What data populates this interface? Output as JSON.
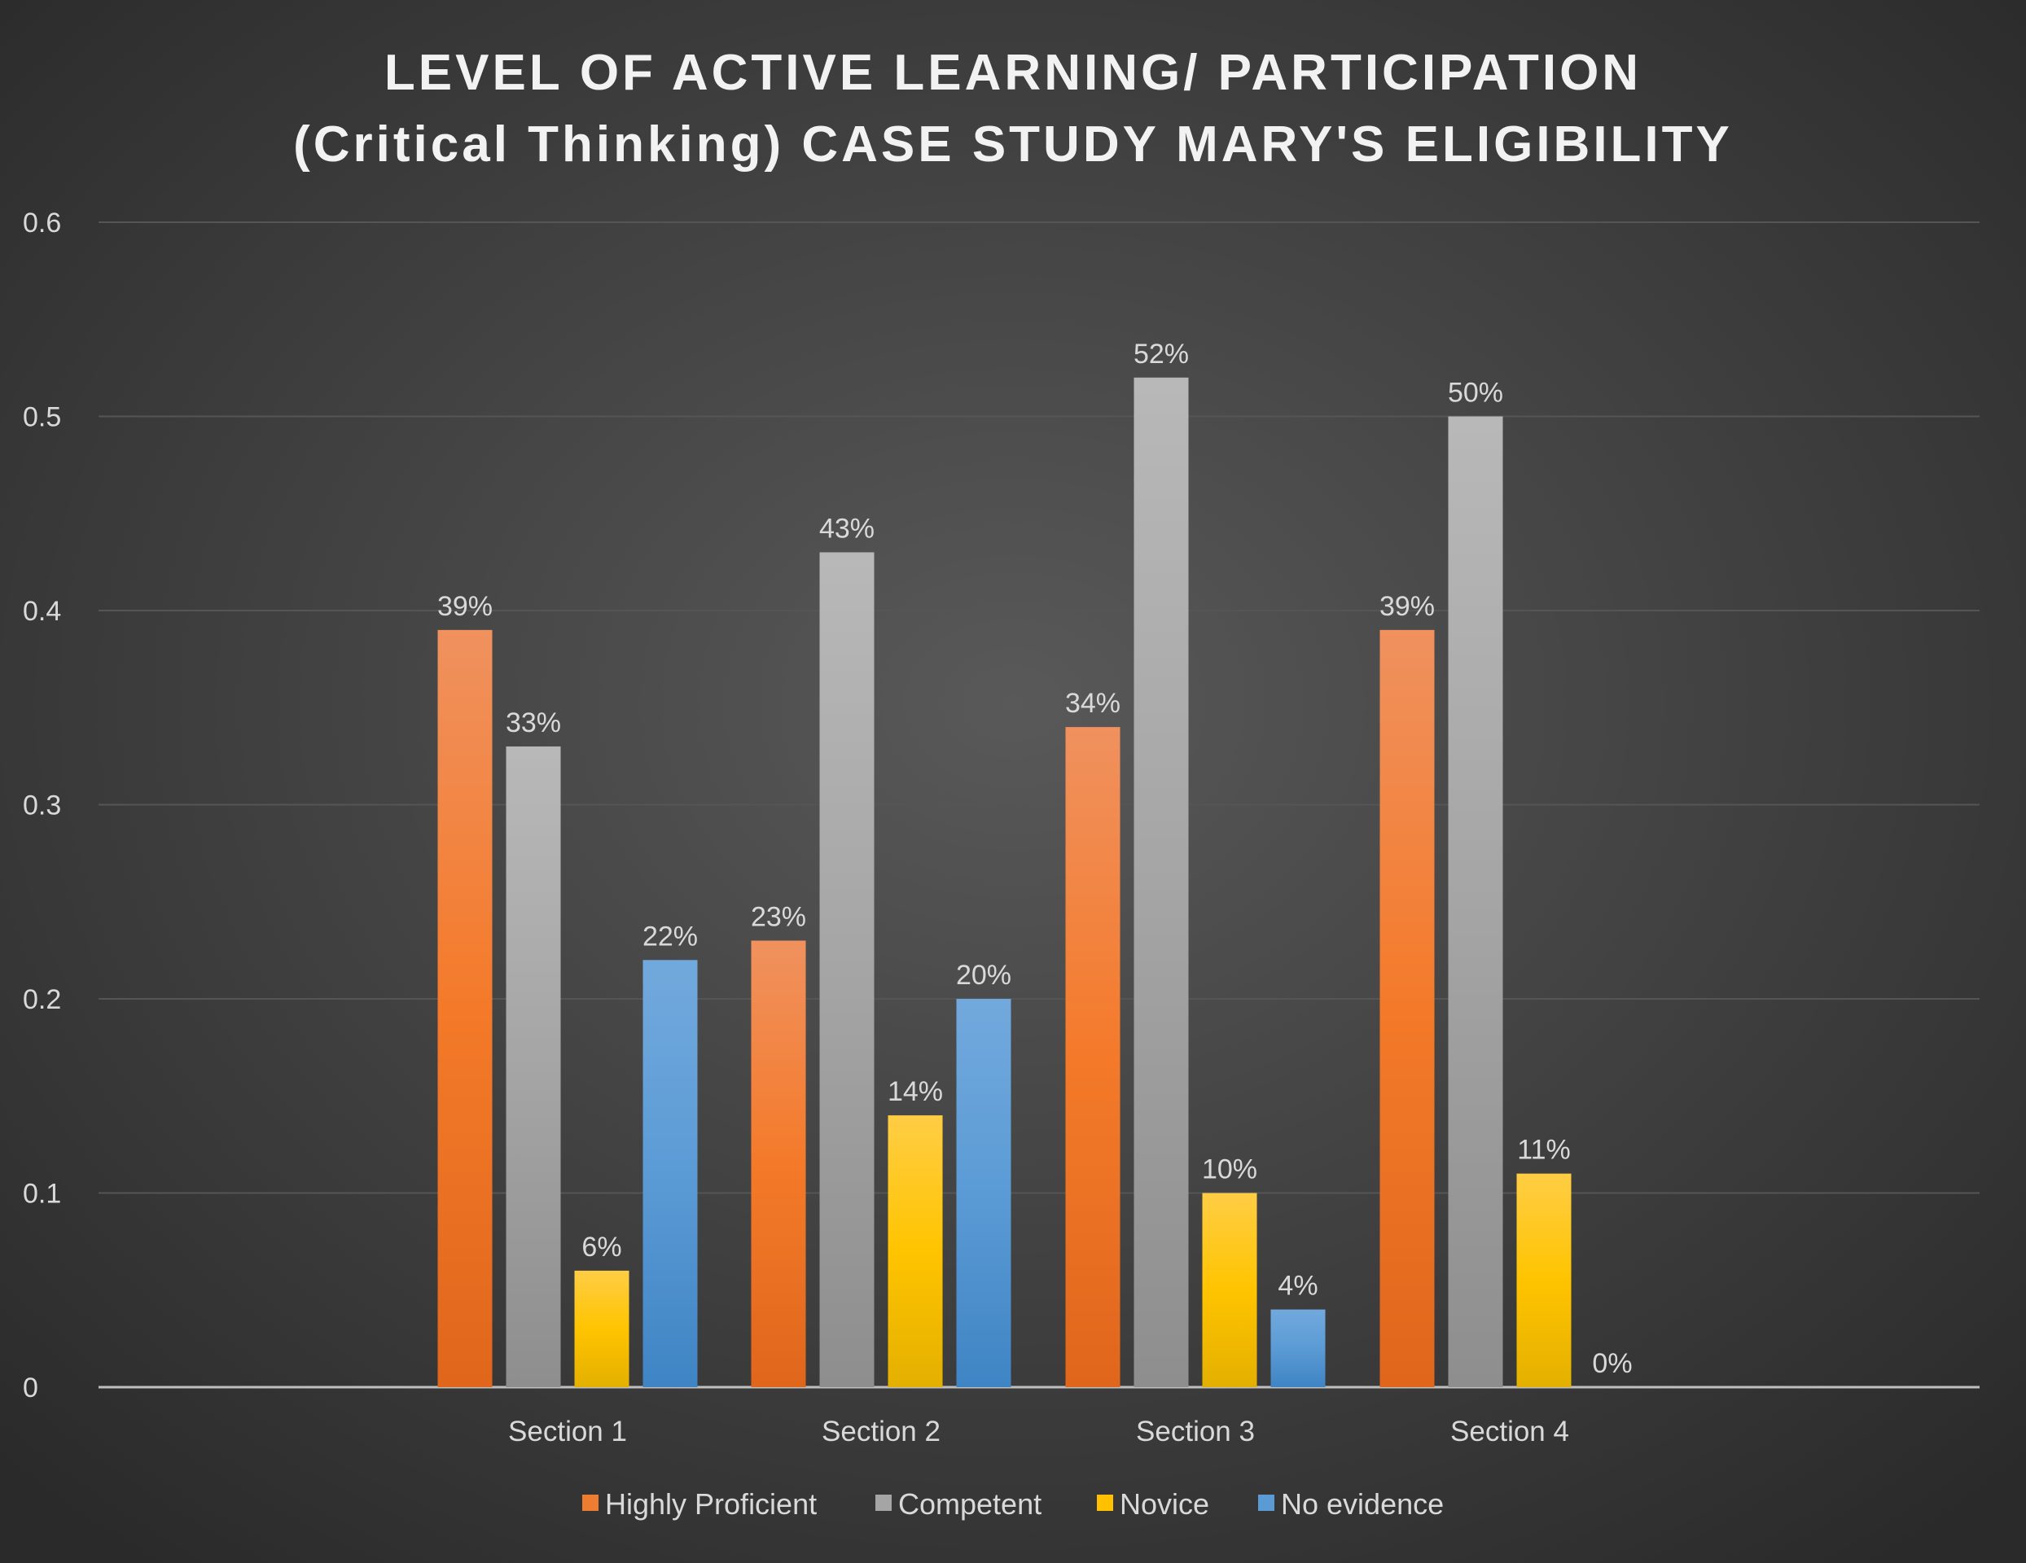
{
  "chart_data": {
    "type": "bar",
    "title": [
      "LEVEL OF ACTIVE LEARNING/ PARTICIPATION",
      "(Critical Thinking) CASE STUDY MARY'S ELIGIBILITY"
    ],
    "xlabel": "",
    "ylabel": "",
    "ylim": [
      0,
      0.6
    ],
    "yticks": [
      "0",
      "0.1",
      "0.2",
      "0.3",
      "0.4",
      "0.5",
      "0.6"
    ],
    "grid": true,
    "legend_position": "bottom",
    "categories": [
      "Section 1",
      "Section 2",
      "Section 3",
      "Section 4"
    ],
    "series": [
      {
        "name": "Highly Proficient",
        "color": "#ED7D31",
        "values": [
          0.39,
          0.23,
          0.34,
          0.39
        ],
        "labels": [
          "39%",
          "23%",
          "34%",
          "39%"
        ]
      },
      {
        "name": "Competent",
        "color": "#A5A5A5",
        "values": [
          0.33,
          0.43,
          0.52,
          0.5
        ],
        "labels": [
          "33%",
          "43%",
          "52%",
          "50%"
        ]
      },
      {
        "name": "Novice",
        "color": "#FFC000",
        "values": [
          0.06,
          0.14,
          0.1,
          0.11
        ],
        "labels": [
          "6%",
          "14%",
          "10%",
          "11%"
        ]
      },
      {
        "name": "No evidence",
        "color": "#5B9BD5",
        "values": [
          0.22,
          0.2,
          0.04,
          0.0
        ],
        "labels": [
          "22%",
          "20%",
          "4%",
          "0%"
        ]
      }
    ]
  }
}
